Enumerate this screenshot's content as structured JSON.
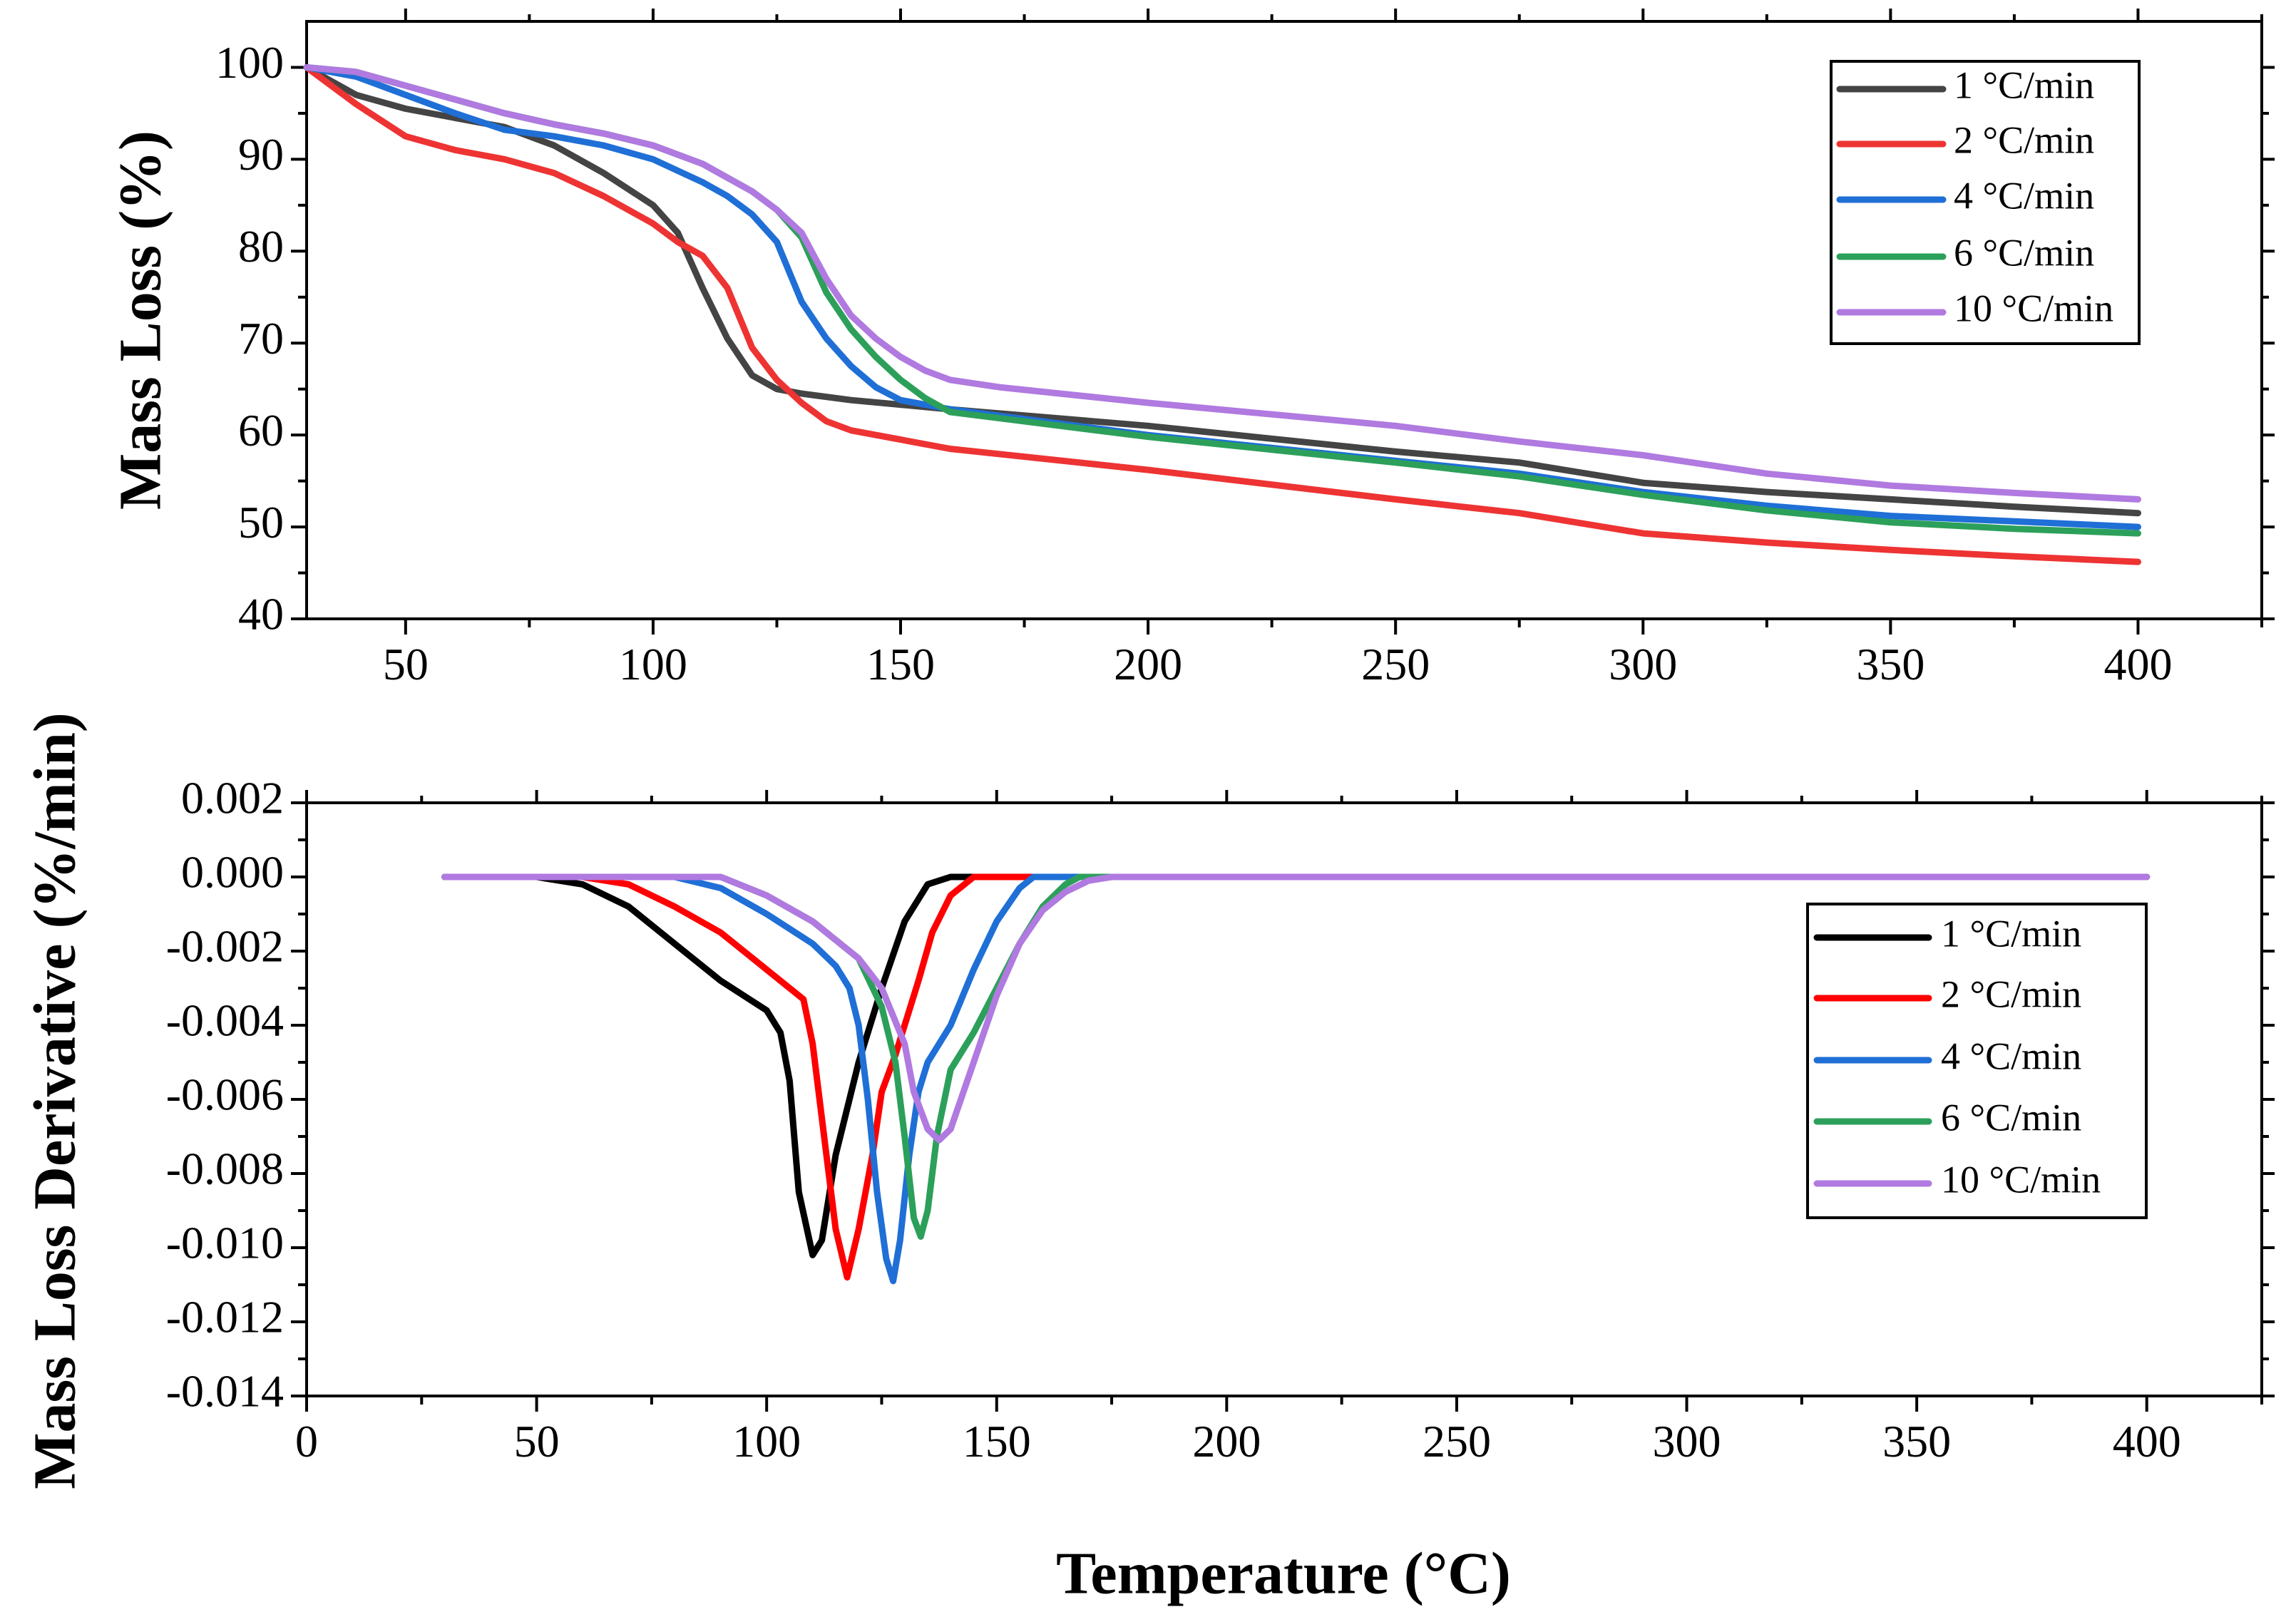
{
  "colors": {
    "c1": "#444444",
    "c1_dtg": "#000000",
    "c2": "#ee3333",
    "c2_dtg": "#ff0000",
    "c4": "#1f6fd6",
    "c6": "#2ca05a",
    "c10": "#b07ae0"
  },
  "chart_data": [
    {
      "type": "line",
      "title": "",
      "xlabel": "",
      "ylabel": "Mass Loss (%)",
      "xlim": [
        30,
        425
      ],
      "ylim": [
        40,
        105
      ],
      "xticks": [
        50,
        100,
        150,
        200,
        250,
        300,
        350,
        400
      ],
      "yticks": [
        40,
        50,
        60,
        70,
        80,
        90,
        100
      ],
      "legend_position": "top-right",
      "series": [
        {
          "name": "1 °C/min",
          "color_key": "c1",
          "x": [
            30,
            40,
            50,
            60,
            70,
            80,
            90,
            100,
            105,
            110,
            115,
            120,
            125,
            130,
            140,
            150,
            160,
            200,
            250,
            275,
            300,
            325,
            350,
            375,
            400
          ],
          "y": [
            100,
            97,
            95.5,
            94.5,
            93.5,
            91.5,
            88.5,
            85,
            82,
            76,
            70.5,
            66.5,
            65,
            64.5,
            63.8,
            63.3,
            62.8,
            61,
            58.2,
            57,
            54.8,
            53.8,
            53,
            52.2,
            51.5
          ]
        },
        {
          "name": "2 °C/min",
          "color_key": "c2",
          "x": [
            30,
            40,
            50,
            60,
            70,
            80,
            90,
            100,
            105,
            110,
            115,
            120,
            125,
            130,
            135,
            140,
            150,
            160,
            200,
            250,
            275,
            300,
            325,
            350,
            375,
            400
          ],
          "y": [
            100,
            96,
            92.5,
            91,
            90,
            88.5,
            86,
            83,
            81,
            79.5,
            76,
            69.5,
            66,
            63.5,
            61.5,
            60.5,
            59.5,
            58.5,
            56.2,
            53,
            51.5,
            49.3,
            48.3,
            47.5,
            46.8,
            46.2
          ]
        },
        {
          "name": "4 °C/min",
          "color_key": "c4",
          "x": [
            30,
            40,
            50,
            60,
            70,
            80,
            90,
            100,
            110,
            115,
            120,
            125,
            130,
            135,
            140,
            145,
            150,
            160,
            200,
            250,
            275,
            300,
            325,
            350,
            375,
            400
          ],
          "y": [
            100,
            99,
            97,
            95,
            93.2,
            92.5,
            91.5,
            90,
            87.5,
            86,
            84,
            81,
            74.5,
            70.5,
            67.5,
            65.2,
            63.8,
            62.8,
            60,
            57.2,
            55.8,
            53.8,
            52.3,
            51.2,
            50.6,
            50
          ]
        },
        {
          "name": "6 °C/min",
          "color_key": "c6",
          "x": [
            30,
            40,
            50,
            60,
            70,
            80,
            90,
            100,
            110,
            120,
            125,
            130,
            135,
            140,
            145,
            150,
            155,
            160,
            200,
            250,
            275,
            300,
            325,
            350,
            375,
            400
          ],
          "y": [
            100,
            99.5,
            98,
            96.5,
            95,
            93.8,
            92.8,
            91.5,
            89.5,
            86.5,
            84.5,
            81.5,
            75.5,
            71.5,
            68.5,
            66,
            64,
            62.5,
            59.8,
            57,
            55.5,
            53.5,
            51.8,
            50.5,
            49.8,
            49.3
          ]
        },
        {
          "name": "10 °C/min",
          "color_key": "c10",
          "x": [
            30,
            40,
            50,
            60,
            70,
            80,
            90,
            100,
            110,
            120,
            125,
            130,
            135,
            140,
            145,
            150,
            155,
            160,
            170,
            200,
            250,
            275,
            300,
            325,
            350,
            375,
            400
          ],
          "y": [
            100,
            99.5,
            98,
            96.5,
            95,
            93.8,
            92.8,
            91.5,
            89.5,
            86.5,
            84.5,
            82,
            77,
            73,
            70.5,
            68.5,
            67,
            66,
            65.2,
            63.5,
            61,
            59.3,
            57.8,
            55.8,
            54.5,
            53.7,
            53
          ]
        }
      ]
    },
    {
      "type": "line",
      "title": "",
      "xlabel": "Temperature (°C)",
      "ylabel": "Mass Loss Derivative (%/min)",
      "xlim": [
        0,
        425
      ],
      "ylim": [
        -0.014,
        0.002
      ],
      "xticks": [
        0,
        50,
        100,
        150,
        200,
        250,
        300,
        350,
        400
      ],
      "yticks": [
        -0.014,
        -0.012,
        -0.01,
        -0.008,
        -0.006,
        -0.004,
        -0.002,
        0.0,
        0.002
      ],
      "yticklabels": [
        "-0.014",
        "-0.012",
        "-0.010",
        "-0.008",
        "-0.006",
        "-0.004",
        "-0.002",
        "0.000",
        "0.002"
      ],
      "legend_position": "middle-right",
      "series": [
        {
          "name": "1 °C/min",
          "color_key": "c1_dtg",
          "x": [
            30,
            50,
            60,
            70,
            80,
            90,
            100,
            103,
            105,
            107,
            110,
            112,
            115,
            118,
            120,
            125,
            130,
            135,
            140,
            400
          ],
          "y": [
            0,
            0,
            -0.0002,
            -0.0008,
            -0.0018,
            -0.0028,
            -0.0036,
            -0.0042,
            -0.0055,
            -0.0085,
            -0.0102,
            -0.0098,
            -0.0075,
            -0.006,
            -0.005,
            -0.003,
            -0.0012,
            -0.0002,
            0,
            0
          ]
        },
        {
          "name": "2 °C/min",
          "color_key": "c2_dtg",
          "x": [
            30,
            60,
            70,
            80,
            90,
            100,
            108,
            110,
            113,
            115,
            117.5,
            120,
            123,
            125,
            128,
            130,
            133,
            136,
            140,
            145,
            400
          ],
          "y": [
            0,
            0,
            -0.0002,
            -0.0008,
            -0.0015,
            -0.0025,
            -0.0033,
            -0.0045,
            -0.0075,
            -0.0095,
            -0.0108,
            -0.0095,
            -0.0075,
            -0.0058,
            -0.0048,
            -0.004,
            -0.0028,
            -0.0015,
            -0.0005,
            0,
            0
          ]
        },
        {
          "name": "4 °C/min",
          "color_key": "c4",
          "x": [
            30,
            80,
            90,
            100,
            110,
            115,
            118,
            120,
            122,
            124,
            126,
            127.5,
            129,
            131,
            133,
            135,
            140,
            145,
            150,
            155,
            158,
            400
          ],
          "y": [
            0,
            0,
            -0.0003,
            -0.001,
            -0.0018,
            -0.0024,
            -0.003,
            -0.004,
            -0.006,
            -0.0085,
            -0.0103,
            -0.0109,
            -0.0098,
            -0.0075,
            -0.0058,
            -0.005,
            -0.004,
            -0.0025,
            -0.0012,
            -0.0003,
            0,
            0
          ]
        },
        {
          "name": "6 °C/min",
          "color_key": "c6",
          "x": [
            30,
            90,
            100,
            110,
            120,
            125,
            128,
            130,
            132,
            133.5,
            135,
            137,
            140,
            145,
            150,
            155,
            160,
            165,
            168,
            400
          ],
          "y": [
            0,
            0,
            -0.0005,
            -0.0012,
            -0.0022,
            -0.0035,
            -0.005,
            -0.007,
            -0.0092,
            -0.0097,
            -0.009,
            -0.007,
            -0.0052,
            -0.0042,
            -0.003,
            -0.0018,
            -0.0008,
            -0.0002,
            0,
            0
          ]
        },
        {
          "name": "10 °C/min",
          "color_key": "c10",
          "x": [
            30,
            90,
            100,
            110,
            120,
            125,
            130,
            132,
            135,
            137.5,
            140,
            145,
            150,
            155,
            160,
            165,
            170,
            175,
            400
          ],
          "y": [
            0,
            0,
            -0.0005,
            -0.0012,
            -0.0022,
            -0.003,
            -0.0045,
            -0.0058,
            -0.0068,
            -0.0071,
            -0.0068,
            -0.005,
            -0.0032,
            -0.0018,
            -0.0009,
            -0.0004,
            -0.0001,
            0,
            0
          ]
        }
      ]
    }
  ]
}
